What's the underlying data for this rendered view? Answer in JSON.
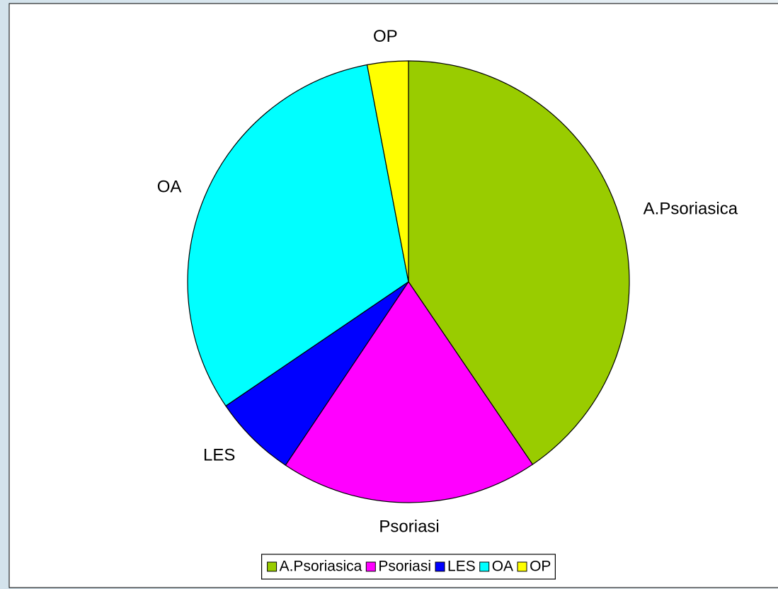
{
  "chart_data": {
    "type": "pie",
    "categories": [
      "A.Psoriasica",
      "Psoriasi",
      "LES",
      "OA",
      "OP"
    ],
    "values": [
      40.5,
      18.9,
      6.1,
      31.5,
      3.0
    ],
    "colors": [
      "#99cc00",
      "#ff00ff",
      "#0000ff",
      "#00ffff",
      "#ffff00"
    ],
    "legend": "bottom"
  }
}
